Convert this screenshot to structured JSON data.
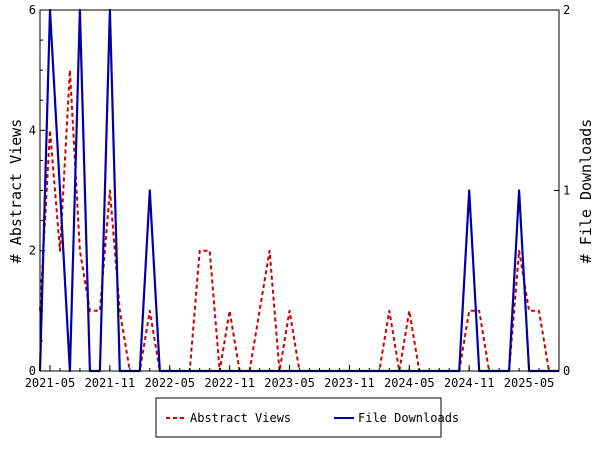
{
  "chart_data": {
    "type": "line",
    "x": [
      "2021-04",
      "2021-05",
      "2021-06",
      "2021-07",
      "2021-08",
      "2021-09",
      "2021-10",
      "2021-11",
      "2021-12",
      "2022-01",
      "2022-02",
      "2022-03",
      "2022-04",
      "2022-05",
      "2022-06",
      "2022-07",
      "2022-08",
      "2022-09",
      "2022-10",
      "2022-11",
      "2022-12",
      "2023-01",
      "2023-02",
      "2023-03",
      "2023-04",
      "2023-05",
      "2023-06",
      "2023-07",
      "2023-08",
      "2023-09",
      "2023-10",
      "2023-11",
      "2023-12",
      "2024-01",
      "2024-02",
      "2024-03",
      "2024-04",
      "2024-05",
      "2024-06",
      "2024-07",
      "2024-08",
      "2024-09",
      "2024-10",
      "2024-11",
      "2024-12",
      "2025-01",
      "2025-02",
      "2025-03",
      "2025-04",
      "2025-05",
      "2025-06",
      "2025-07",
      "2025-08"
    ],
    "x_tick_labels": [
      "2021-05",
      "2021-11",
      "2022-05",
      "2022-11",
      "2023-05",
      "2023-11",
      "2024-05",
      "2024-11",
      "2025-05"
    ],
    "x_tick_index": [
      1,
      7,
      13,
      19,
      25,
      31,
      37,
      43,
      49
    ],
    "series": [
      {
        "name": "Abstract Views",
        "axis": "left",
        "color": "#cc0000",
        "values": [
          1,
          4,
          2,
          5,
          2,
          1,
          1,
          3,
          1,
          0,
          0,
          1,
          0,
          0,
          0,
          0,
          2,
          2,
          0,
          1,
          0,
          0,
          1,
          2,
          0,
          1,
          0,
          0,
          0,
          0,
          0,
          0,
          0,
          0,
          0,
          1,
          0,
          1,
          0,
          0,
          0,
          0,
          0,
          1,
          1,
          0,
          0,
          0,
          2,
          1,
          1,
          0,
          0
        ]
      },
      {
        "name": "File Downloads",
        "axis": "right",
        "color": "#0000aa",
        "values": [
          0,
          2,
          1,
          0,
          2,
          0,
          0,
          2,
          0,
          0,
          0,
          1,
          0,
          0,
          0,
          0,
          0,
          0,
          0,
          0,
          0,
          0,
          0,
          0,
          0,
          0,
          0,
          0,
          0,
          0,
          0,
          0,
          0,
          0,
          0,
          0,
          0,
          0,
          0,
          0,
          0,
          0,
          0,
          1,
          0,
          0,
          0,
          0,
          1,
          0,
          0,
          0,
          0
        ]
      }
    ],
    "yleft": {
      "label": "# Abstract Views",
      "lim": [
        0,
        6
      ],
      "ticks": [
        "0",
        "2",
        "4",
        "6"
      ]
    },
    "yright": {
      "label": "# File Downloads",
      "lim": [
        0,
        2
      ],
      "ticks": [
        "0",
        "1",
        "2"
      ]
    },
    "grid": false,
    "legend": {
      "placement": "bottom-center",
      "entries": [
        "Abstract Views",
        "File Downloads"
      ]
    }
  }
}
